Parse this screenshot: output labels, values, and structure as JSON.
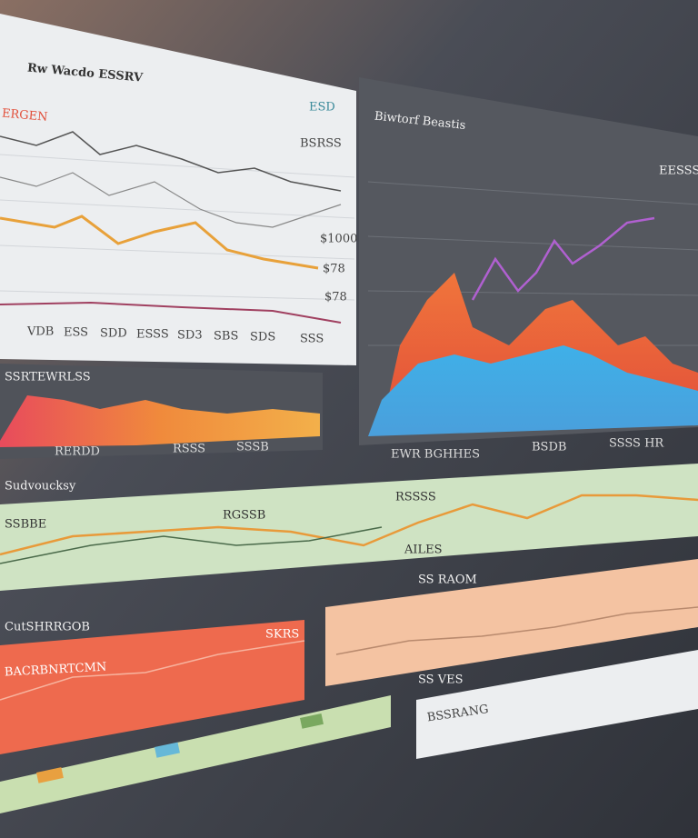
{
  "top_left_panel": {
    "title": "Rw Wacdo ESSRV",
    "subtitle": "ERGEN",
    "badge": "ESD",
    "legend": "BSRSS",
    "y_labels": [
      "$1000",
      "$78",
      "$78"
    ],
    "x_labels": [
      "VDB",
      "ESS",
      "SDD",
      "ESSS",
      "SD3",
      "SBS",
      "SDS",
      "SSS"
    ]
  },
  "top_right_panel": {
    "title": "Biwtorf Beastis",
    "legend": "EESSS",
    "footer": [
      "EWR BGHHES",
      "BSDB",
      "SSSS HR"
    ]
  },
  "left_strip": {
    "title": "SSRTEWRLSS",
    "x_labels": [
      "RERDD",
      "RSSS",
      "SSSB"
    ]
  },
  "green_strip": {
    "title": "Sudvoucksy",
    "labels": [
      "SSBBE",
      "RGSSB",
      "RSSSS",
      "AILES"
    ]
  },
  "orange_section": {
    "title": "CutSHRRGOB",
    "panel_title": "BACRBNRTCMN",
    "badge": "SKRS"
  },
  "peach_section": {
    "title": "SS RAOM"
  },
  "white_section": {
    "title": "SS VES",
    "label": "BSSRANG"
  }
}
